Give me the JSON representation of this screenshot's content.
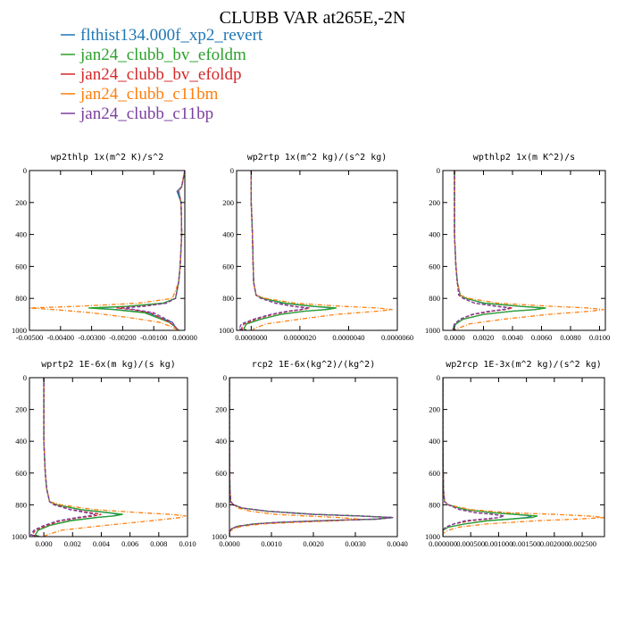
{
  "title": "CLUBB VAR at265E,-2N",
  "legend": [
    {
      "label": "flthist134.000f_xp2_revert",
      "color": "#1f77b4",
      "dash": ""
    },
    {
      "label": "jan24_clubb_bv_efoldm",
      "color": "#2ca02c",
      "dash": ""
    },
    {
      "label": "jan24_clubb_bv_efoldp",
      "color": "#d62728",
      "dash": "4,2"
    },
    {
      "label": "jan24_clubb_c11bm",
      "color": "#ff7f0e",
      "dash": "5,2,1,2"
    },
    {
      "label": "jan24_clubb_c11bp",
      "color": "#7b3f9e",
      "dash": "4,2"
    }
  ],
  "chart_data": [
    {
      "type": "line",
      "title": "wp2thlp  1x(m^2 K)/s^2",
      "xlim": [
        -0.005,
        0.0
      ],
      "ylim": [
        1000,
        0
      ],
      "xticks": [
        -0.005,
        -0.004,
        -0.003,
        -0.002,
        -0.001,
        0.0
      ],
      "xtick_labels": [
        "-0.00500",
        "-0.00400",
        "-0.00300",
        "-0.00200",
        "-0.00100",
        "0.00000"
      ],
      "yticks": [
        0,
        200,
        400,
        600,
        800,
        1000
      ],
      "ytick_labels": [
        "0",
        "200",
        "400",
        "600",
        "800",
        "1000"
      ],
      "y": [
        0,
        100,
        130,
        200,
        400,
        600,
        700,
        800,
        830,
        850,
        860,
        870,
        890,
        920,
        950,
        980,
        1000
      ],
      "series": [
        {
          "values": [
            0,
            -0.0001,
            -0.00025,
            -0.00012,
            -0.0001,
            -0.00015,
            -0.0002,
            -0.0003,
            -0.0007,
            -0.0018,
            -0.003,
            -0.0022,
            -0.0012,
            -0.0008,
            -0.0004,
            -0.0003,
            -0.0002
          ]
        },
        {
          "values": [
            0,
            -0.0001,
            -0.0002,
            -0.00012,
            -0.0001,
            -0.00015,
            -0.0002,
            -0.0003,
            -0.0007,
            -0.0019,
            -0.0031,
            -0.0023,
            -0.0013,
            -0.0009,
            -0.0005,
            -0.0003,
            -0.0002
          ]
        },
        {
          "values": [
            0,
            -0.0001,
            -0.0002,
            -0.00012,
            -0.0001,
            -0.00015,
            -0.0002,
            -0.0003,
            -0.0006,
            -0.0014,
            -0.0022,
            -0.0017,
            -0.0011,
            -0.0008,
            -0.0005,
            -0.0003,
            -0.0002
          ]
        },
        {
          "values": [
            0,
            -0.0001,
            -0.0002,
            -0.00012,
            -0.0001,
            -0.00015,
            -0.0002,
            -0.0004,
            -0.0015,
            -0.0035,
            -0.005,
            -0.0042,
            -0.003,
            -0.0018,
            -0.0008,
            -0.0004,
            -0.0002
          ]
        },
        {
          "values": [
            0,
            -0.0001,
            -0.0002,
            -0.00012,
            -0.0001,
            -0.00015,
            -0.0002,
            -0.0003,
            -0.0006,
            -0.0013,
            -0.002,
            -0.0016,
            -0.001,
            -0.0007,
            -0.0004,
            -0.0003,
            -0.0002
          ]
        }
      ]
    },
    {
      "type": "line",
      "title": "wp2rtp  1x(m^2 kg)/(s^2 kg)",
      "xlim": [
        -6e-07,
        6e-06
      ],
      "ylim": [
        1000,
        0
      ],
      "xticks": [
        0,
        2e-06,
        4e-06,
        6e-06
      ],
      "xtick_labels": [
        "0.0000000",
        "0.0000020",
        "0.0000040",
        "0.0000060"
      ],
      "yticks": [
        0,
        200,
        400,
        600,
        800,
        1000
      ],
      "ytick_labels": [
        "0",
        "200",
        "400",
        "600",
        "800",
        "1000"
      ],
      "y": [
        0,
        200,
        400,
        600,
        700,
        780,
        800,
        830,
        850,
        860,
        870,
        880,
        900,
        930,
        960,
        990,
        1000
      ],
      "series": [
        {
          "values": [
            0,
            0,
            5e-08,
            8e-08,
            1e-07,
            2e-07,
            5e-07,
            1.3e-06,
            2.5e-06,
            3.4e-06,
            3e-06,
            2.2e-06,
            1.2e-06,
            4e-07,
            -2e-07,
            -3e-07,
            -2e-07
          ]
        },
        {
          "values": [
            0,
            0,
            5e-08,
            8e-08,
            1e-07,
            2e-07,
            5e-07,
            1.4e-06,
            2.6e-06,
            3.5e-06,
            3.1e-06,
            2.2e-06,
            1.2e-06,
            4e-07,
            -2e-07,
            -3e-07,
            -2e-07
          ]
        },
        {
          "values": [
            0,
            0,
            5e-08,
            8e-08,
            1e-07,
            2e-07,
            4e-07,
            1e-06,
            1.8e-06,
            2.4e-06,
            2.1e-06,
            1.6e-06,
            9e-07,
            2e-07,
            -3e-07,
            -4e-07,
            -2e-07
          ]
        },
        {
          "values": [
            0,
            0,
            5e-08,
            8e-08,
            1e-07,
            2e-07,
            6e-07,
            1.8e-06,
            3.8e-06,
            5.2e-06,
            5.8e-06,
            5.2e-06,
            3.5e-06,
            2e-06,
            6e-07,
            1e-07,
            1e-07
          ]
        },
        {
          "values": [
            0,
            0,
            5e-08,
            8e-08,
            1e-07,
            2e-07,
            4e-07,
            1e-06,
            1.7e-06,
            2.3e-06,
            2e-06,
            1.5e-06,
            8e-07,
            1e-07,
            -4e-07,
            -5e-07,
            -3e-07
          ]
        }
      ]
    },
    {
      "type": "line",
      "title": "wpthlp2  1x(m K^2)/s",
      "xlim": [
        -0.0008,
        0.0104
      ],
      "ylim": [
        1000,
        0
      ],
      "xticks": [
        0,
        0.002,
        0.004,
        0.006,
        0.008,
        0.01
      ],
      "xtick_labels": [
        "0.0000",
        "0.0020",
        "0.0040",
        "0.0060",
        "0.0080",
        "0.0100"
      ],
      "yticks": [
        0,
        200,
        400,
        600,
        800,
        1000
      ],
      "ytick_labels": [
        "0",
        "200",
        "400",
        "600",
        "800",
        "1000"
      ],
      "y": [
        0,
        200,
        400,
        600,
        700,
        780,
        800,
        830,
        850,
        860,
        870,
        880,
        900,
        930,
        960,
        990,
        1000
      ],
      "series": [
        {
          "values": [
            0,
            0,
            0,
            0.0001,
            0.0002,
            0.0004,
            0.0008,
            0.002,
            0.0045,
            0.0062,
            0.0055,
            0.004,
            0.002,
            0.0006,
            0.0001,
            -0.0001,
            0
          ]
        },
        {
          "values": [
            0,
            0,
            0,
            0.0001,
            0.0002,
            0.0004,
            0.0008,
            0.0021,
            0.0046,
            0.0063,
            0.0056,
            0.004,
            0.002,
            0.0006,
            0.0001,
            -0.0001,
            0
          ]
        },
        {
          "values": [
            0,
            0,
            0,
            0.0001,
            0.0002,
            0.0003,
            0.0006,
            0.0014,
            0.003,
            0.004,
            0.0035,
            0.0026,
            0.0013,
            0.0004,
            0,
            -0.0001,
            0
          ]
        },
        {
          "values": [
            0,
            0,
            0,
            0.0001,
            0.0002,
            0.0004,
            0.001,
            0.003,
            0.0068,
            0.0092,
            0.0103,
            0.0094,
            0.0065,
            0.0034,
            0.001,
            0.0002,
            0
          ]
        },
        {
          "values": [
            0,
            0,
            0,
            0.0001,
            0.0002,
            0.0003,
            0.0006,
            0.0014,
            0.0029,
            0.0038,
            0.0033,
            0.0024,
            0.0012,
            0.0004,
            0,
            -0.0001,
            0
          ]
        }
      ]
    },
    {
      "type": "line",
      "title": "wprtp2  1E-6x(m kg)/(s kg)",
      "xlim": [
        -0.001,
        0.01
      ],
      "ylim": [
        1000,
        0
      ],
      "xticks": [
        0,
        0.002,
        0.004,
        0.006,
        0.008,
        0.01
      ],
      "xtick_labels": [
        "0.000",
        "0.002",
        "0.004",
        "0.006",
        "0.008",
        "0.010"
      ],
      "yticks": [
        0,
        200,
        400,
        600,
        800,
        1000
      ],
      "ytick_labels": [
        "0",
        "200",
        "400",
        "600",
        "800",
        "1000"
      ],
      "y": [
        0,
        200,
        400,
        600,
        700,
        780,
        800,
        830,
        850,
        860,
        870,
        880,
        900,
        930,
        960,
        990,
        1000
      ],
      "series": [
        {
          "values": [
            0,
            0,
            0,
            0.0001,
            0.0002,
            0.0004,
            0.0009,
            0.0025,
            0.0045,
            0.0053,
            0.0048,
            0.0036,
            0.0018,
            0.0004,
            -0.0004,
            -0.0006,
            -0.0003
          ]
        },
        {
          "values": [
            0,
            0,
            0,
            0.0001,
            0.0002,
            0.0004,
            0.0009,
            0.0026,
            0.0046,
            0.0055,
            0.0049,
            0.0037,
            0.0019,
            0.0004,
            -0.0004,
            -0.0006,
            -0.0003
          ]
        },
        {
          "values": [
            0,
            0,
            0,
            0.0001,
            0.0002,
            0.0004,
            0.0008,
            0.0019,
            0.0033,
            0.004,
            0.0035,
            0.0026,
            0.0012,
            0.0002,
            -0.0006,
            -0.0008,
            -0.0004
          ]
        },
        {
          "values": [
            0,
            0,
            0,
            0.0001,
            0.0002,
            0.0004,
            0.0012,
            0.0035,
            0.0068,
            0.0088,
            0.0099,
            0.0095,
            0.0075,
            0.0042,
            0.0012,
            0.0002,
            0
          ]
        },
        {
          "values": [
            0,
            0,
            0,
            0.0001,
            0.0002,
            0.0004,
            0.0007,
            0.0018,
            0.003,
            0.0036,
            0.0031,
            0.0023,
            0.001,
            0,
            -0.0007,
            -0.0009,
            -0.0004
          ]
        }
      ]
    },
    {
      "type": "line",
      "title": "rcp2  1E-6x(kg^2)/(kg^2)",
      "xlim": [
        0,
        0.004
      ],
      "ylim": [
        1000,
        0
      ],
      "xticks": [
        0,
        0.001,
        0.002,
        0.003,
        0.004
      ],
      "xtick_labels": [
        "0.0000",
        "0.0010",
        "0.0020",
        "0.0030",
        "0.0040"
      ],
      "yticks": [
        0,
        200,
        400,
        600,
        800,
        1000
      ],
      "ytick_labels": [
        "0",
        "200",
        "400",
        "600",
        "800",
        "1000"
      ],
      "y": [
        0,
        400,
        700,
        780,
        800,
        820,
        840,
        860,
        870,
        880,
        890,
        900,
        910,
        920,
        935,
        950,
        970,
        1000
      ],
      "series": [
        {
          "values": [
            0,
            0,
            1e-05,
            3e-05,
            0.0001,
            0.0003,
            0.0009,
            0.002,
            0.0031,
            0.0039,
            0.0035,
            0.0022,
            0.0012,
            0.0006,
            0.0002,
            5e-05,
            0,
            0
          ]
        },
        {
          "values": [
            0,
            0,
            1e-05,
            3e-05,
            0.0001,
            0.0003,
            0.0009,
            0.002,
            0.0031,
            0.0039,
            0.0035,
            0.0022,
            0.0012,
            0.0006,
            0.0002,
            5e-05,
            0,
            0
          ]
        },
        {
          "values": [
            0,
            0,
            1e-05,
            3e-05,
            0.0001,
            0.0003,
            0.0009,
            0.002,
            0.0031,
            0.0039,
            0.0035,
            0.0022,
            0.0012,
            0.0006,
            0.0002,
            5e-05,
            0,
            0
          ]
        },
        {
          "values": [
            0,
            0,
            1e-05,
            3e-05,
            8e-05,
            0.0002,
            0.0005,
            0.0011,
            0.0018,
            0.0026,
            0.0031,
            0.0026,
            0.0016,
            0.0008,
            0.0003,
            0.0001,
            0,
            0
          ]
        },
        {
          "values": [
            0,
            0,
            1e-05,
            3e-05,
            0.0001,
            0.0003,
            0.0009,
            0.002,
            0.0031,
            0.0039,
            0.0035,
            0.0022,
            0.0012,
            0.0006,
            0.0002,
            5e-05,
            0,
            0
          ]
        }
      ]
    },
    {
      "type": "line",
      "title": "wp2rcp  1E-3x(m^2 kg)/(s^2 kg)",
      "xlim": [
        0,
        0.0029
      ],
      "ylim": [
        1000,
        0
      ],
      "xticks": [
        0,
        0.0005,
        0.001,
        0.0015,
        0.002,
        0.0025
      ],
      "xtick_labels": [
        "0.000000",
        "0.000500",
        "0.001000",
        "0.001500",
        "0.002000",
        "0.002500"
      ],
      "yticks": [
        0,
        200,
        400,
        600,
        800,
        1000
      ],
      "ytick_labels": [
        "0",
        "200",
        "400",
        "600",
        "800",
        "1000"
      ],
      "y": [
        0,
        400,
        700,
        780,
        800,
        830,
        850,
        860,
        870,
        880,
        890,
        900,
        920,
        940,
        960,
        980,
        1000
      ],
      "series": [
        {
          "values": [
            0,
            0,
            1e-05,
            3e-05,
            0.0001,
            0.0004,
            0.0009,
            0.0013,
            0.0016,
            0.0015,
            0.0012,
            0.0008,
            0.0004,
            0.0001,
            0,
            0,
            0
          ]
        },
        {
          "values": [
            0,
            0,
            1e-05,
            3e-05,
            0.0001,
            0.0004,
            0.0009,
            0.0013,
            0.0017,
            0.0016,
            0.0012,
            0.0008,
            0.0004,
            0.0001,
            0,
            0,
            0
          ]
        },
        {
          "values": [
            0,
            0,
            1e-05,
            3e-05,
            0.0001,
            0.0003,
            0.0006,
            0.0009,
            0.0011,
            0.001,
            0.0008,
            0.0005,
            0.0002,
            5e-05,
            0,
            0,
            0
          ]
        },
        {
          "values": [
            0,
            0,
            1e-05,
            3e-05,
            0.0001,
            0.0005,
            0.0012,
            0.002,
            0.0026,
            0.0029,
            0.0024,
            0.0017,
            0.0008,
            0.0003,
            0.0001,
            0,
            0
          ]
        },
        {
          "values": [
            0,
            0,
            1e-05,
            3e-05,
            0.0001,
            0.0003,
            0.0006,
            0.0009,
            0.0011,
            0.001,
            0.0007,
            0.0004,
            0.0002,
            5e-05,
            0,
            0,
            0
          ]
        }
      ]
    }
  ]
}
